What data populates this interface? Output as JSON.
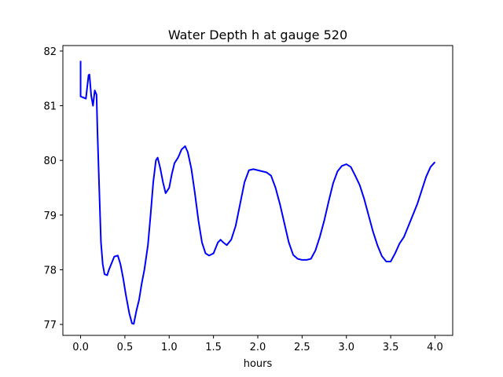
{
  "chart_data": {
    "type": "line",
    "title": "Water Depth h at gauge 520",
    "xlabel": "hours",
    "ylabel": "",
    "xlim": [
      -0.2,
      4.2
    ],
    "ylim": [
      76.8,
      82.1
    ],
    "xticks": [
      0.0,
      0.5,
      1.0,
      1.5,
      2.0,
      2.5,
      3.0,
      3.5,
      4.0
    ],
    "xtick_labels": [
      "0.0",
      "0.5",
      "1.0",
      "1.5",
      "2.0",
      "2.5",
      "3.0",
      "3.5",
      "4.0"
    ],
    "yticks": [
      77,
      78,
      79,
      80,
      81,
      82
    ],
    "ytick_labels": [
      "77",
      "78",
      "79",
      "80",
      "81",
      "82"
    ],
    "grid": false,
    "series": [
      {
        "color": "#0000ff",
        "x": [
          0.0,
          0.0,
          0.03,
          0.06,
          0.09,
          0.1,
          0.12,
          0.14,
          0.16,
          0.18,
          0.19,
          0.21,
          0.23,
          0.25,
          0.27,
          0.3,
          0.32,
          0.35,
          0.38,
          0.42,
          0.45,
          0.48,
          0.51,
          0.55,
          0.58,
          0.6,
          0.63,
          0.66,
          0.69,
          0.72,
          0.76,
          0.79,
          0.82,
          0.85,
          0.87,
          0.9,
          0.93,
          0.96,
          1.0,
          1.03,
          1.06,
          1.1,
          1.14,
          1.18,
          1.21,
          1.25,
          1.29,
          1.33,
          1.37,
          1.41,
          1.45,
          1.5,
          1.55,
          1.58,
          1.61,
          1.65,
          1.7,
          1.75,
          1.8,
          1.85,
          1.9,
          1.95,
          2.0,
          2.05,
          2.1,
          2.15,
          2.2,
          2.25,
          2.3,
          2.35,
          2.4,
          2.45,
          2.5,
          2.55,
          2.6,
          2.65,
          2.7,
          2.75,
          2.8,
          2.85,
          2.9,
          2.95,
          3.0,
          3.05,
          3.1,
          3.15,
          3.2,
          3.25,
          3.3,
          3.35,
          3.4,
          3.45,
          3.5,
          3.55,
          3.6,
          3.65,
          3.7,
          3.75,
          3.8,
          3.85,
          3.9,
          3.95,
          4.0
        ],
        "y": [
          81.82,
          81.17,
          81.15,
          81.13,
          81.56,
          81.57,
          81.18,
          81.0,
          81.28,
          81.2,
          80.55,
          79.5,
          78.5,
          78.1,
          77.92,
          77.9,
          78.0,
          78.12,
          78.24,
          78.26,
          78.1,
          77.85,
          77.55,
          77.2,
          77.02,
          77.01,
          77.25,
          77.45,
          77.75,
          78.0,
          78.45,
          79.0,
          79.6,
          80.0,
          80.05,
          79.85,
          79.6,
          79.4,
          79.5,
          79.75,
          79.95,
          80.05,
          80.2,
          80.26,
          80.15,
          79.85,
          79.4,
          78.9,
          78.5,
          78.3,
          78.26,
          78.3,
          78.5,
          78.55,
          78.5,
          78.45,
          78.55,
          78.8,
          79.2,
          79.6,
          79.82,
          79.84,
          79.82,
          79.8,
          79.78,
          79.72,
          79.5,
          79.2,
          78.85,
          78.5,
          78.27,
          78.2,
          78.18,
          78.18,
          78.2,
          78.35,
          78.6,
          78.9,
          79.25,
          79.58,
          79.8,
          79.9,
          79.93,
          79.88,
          79.72,
          79.55,
          79.3,
          79.0,
          78.7,
          78.45,
          78.25,
          78.15,
          78.15,
          78.3,
          78.48,
          78.6,
          78.8,
          79.0,
          79.2,
          79.45,
          79.7,
          79.88,
          79.97
        ]
      }
    ]
  }
}
